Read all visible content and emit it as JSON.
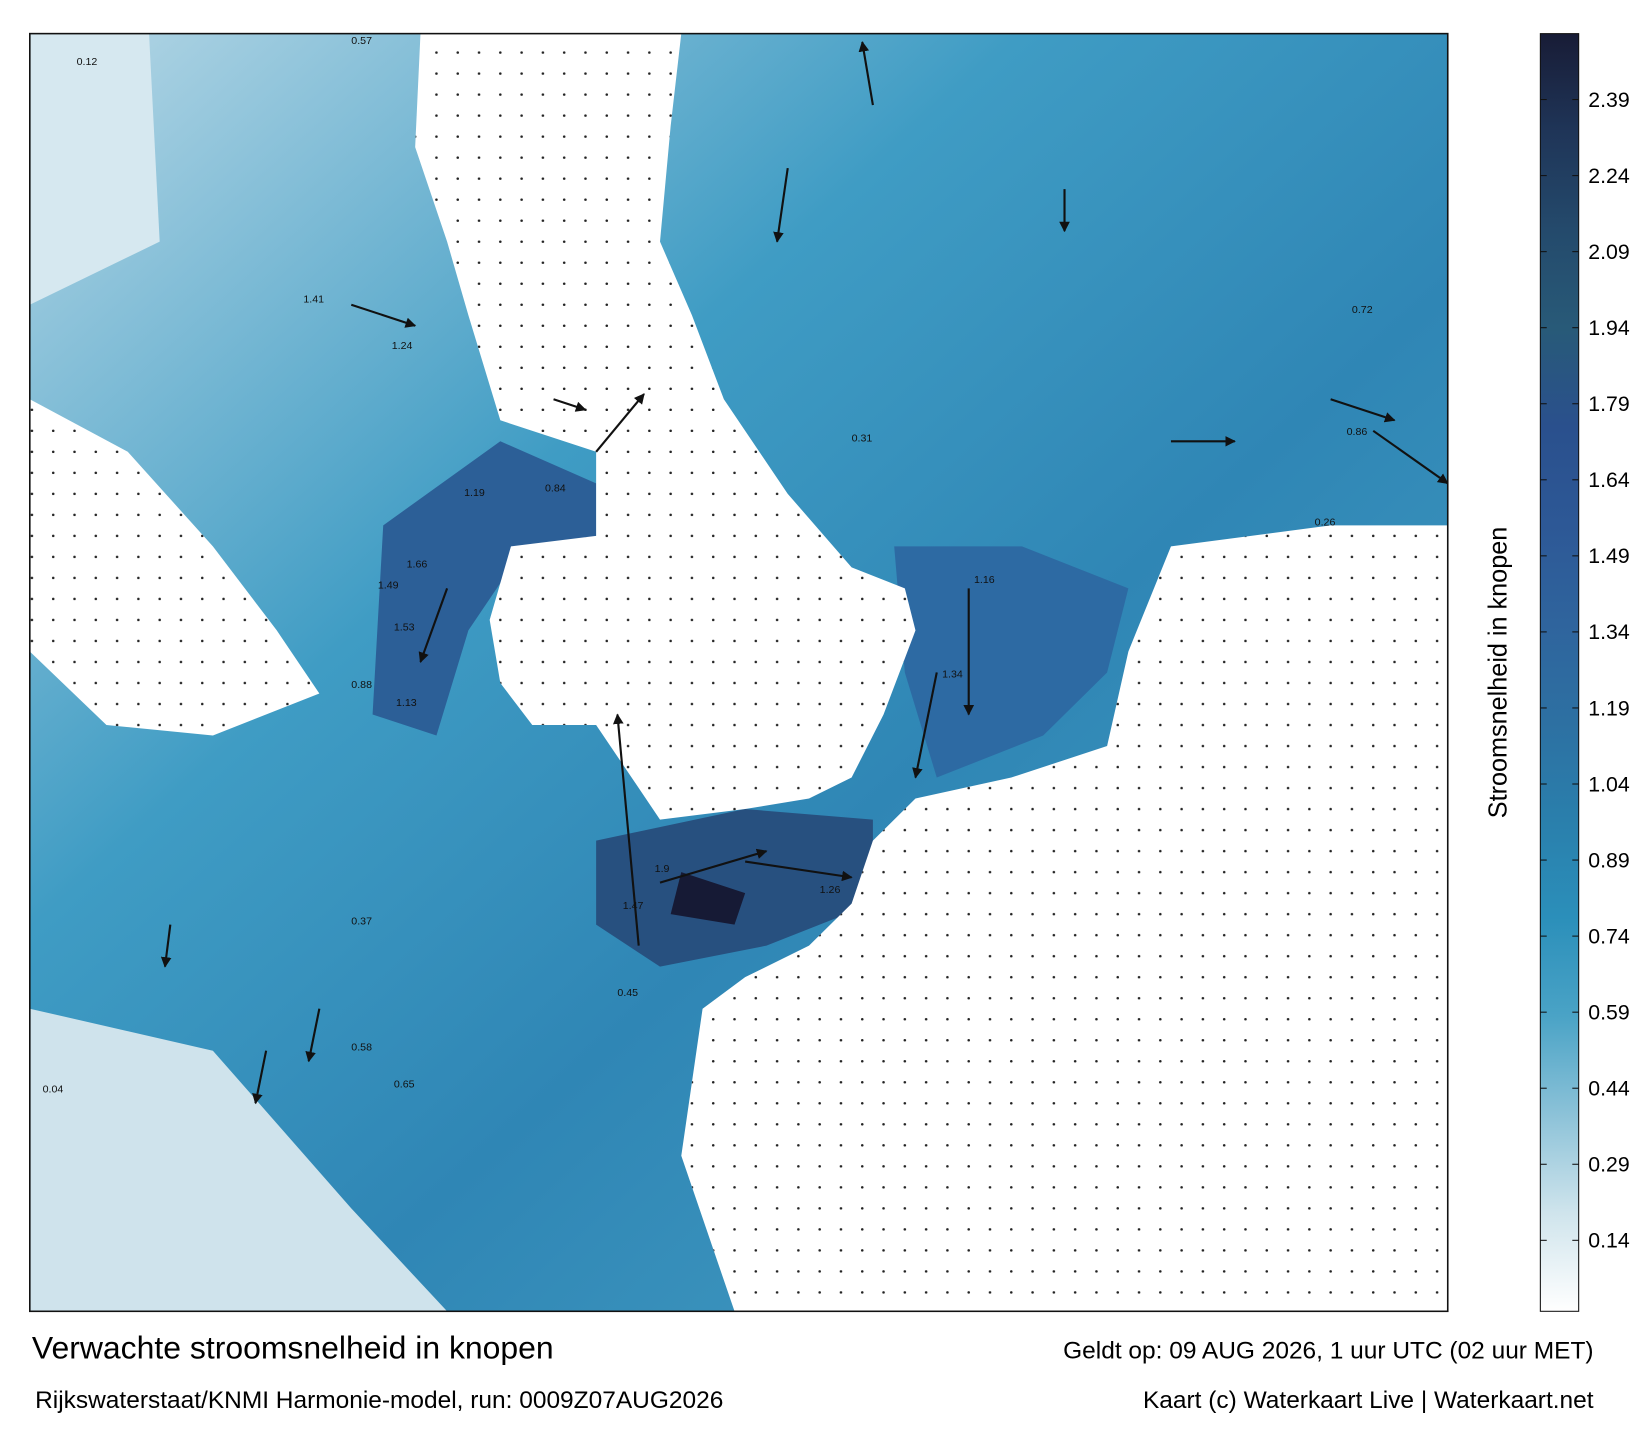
{
  "header": {
    "title": "Verwachte stroomsnelheid in knopen",
    "subtitle": "Rijkswaterstaat/KNMI Harmonie-model, run: 0009Z07AUG2026",
    "valid_time": "Geldt op: 09 AUG 2026, 1 uur UTC (02 uur MET)",
    "credit": "Kaart (c) Waterkaart Live | Waterkaart.net"
  },
  "colorbar": {
    "label": "Stroomsnelheid in knopen",
    "lim": [
      0,
      2.52
    ],
    "ticks": [
      2.39,
      2.24,
      2.09,
      1.94,
      1.79,
      1.64,
      1.49,
      1.34,
      1.19,
      1.04,
      0.89,
      0.74,
      0.59,
      0.44,
      0.29,
      0.14
    ],
    "colors": [
      "#ffffff",
      "#cfe4ec",
      "#8cc2d8",
      "#4aa3c6",
      "#2b8fba",
      "#2a7fac",
      "#2d70a2",
      "#2f649d",
      "#2d5896",
      "#2a508d",
      "#285a78",
      "#244a6c",
      "#1f3558",
      "#181c36"
    ]
  },
  "map": {
    "labels": [
      "0.12",
      "0.57",
      "1.41",
      "1.24",
      "0.84",
      "1.19",
      "1.66",
      "1.49",
      "1.53",
      "0.88",
      "1.13",
      "0.04",
      "0.37",
      "0.45",
      "0.72",
      "0.86",
      "1.16",
      "1.34",
      "1.26",
      "1.9",
      "1.47",
      "0.58",
      "0.65",
      "0.31",
      "0.26"
    ]
  }
}
